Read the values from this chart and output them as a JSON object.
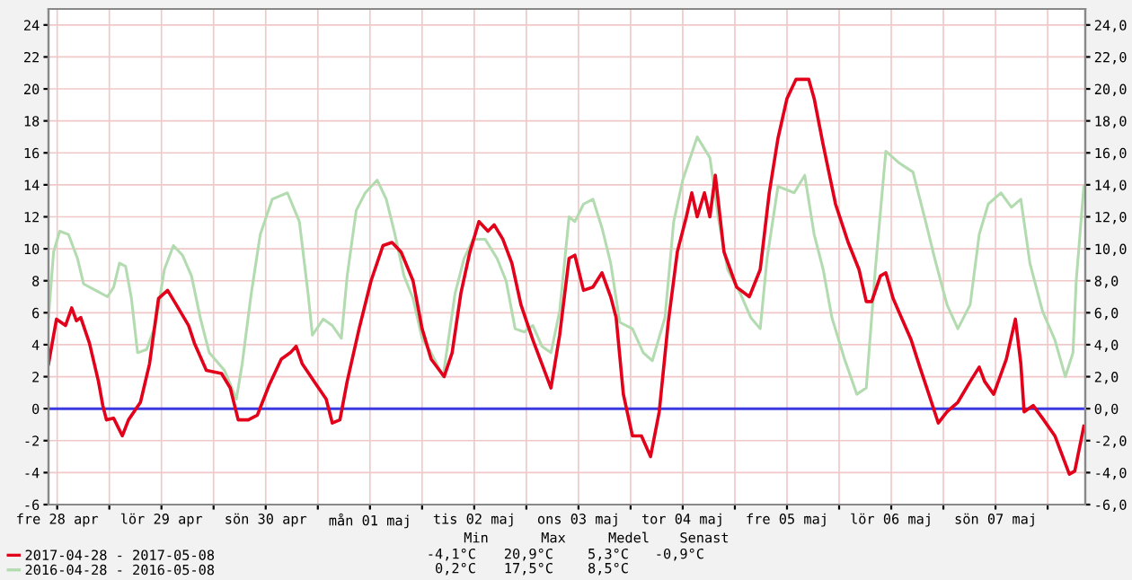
{
  "chart_data": {
    "type": "line",
    "xlim": [
      "2017-04-28T10:00",
      "2017-05-08T08:40"
    ],
    "xticks": [
      {
        "value": "2017-04-28T12:00",
        "label": "fre 28 apr"
      },
      {
        "value": "2017-04-29T00:00",
        "label": null
      },
      {
        "value": "2017-04-29T12:00",
        "label": "lör 29 apr"
      },
      {
        "value": "2017-04-30T00:00",
        "label": null
      },
      {
        "value": "2017-04-30T12:00",
        "label": "sön 30 apr"
      },
      {
        "value": "2017-05-01T00:00",
        "label": null
      },
      {
        "value": "2017-05-01T12:00",
        "label": "mån 01 maj"
      },
      {
        "value": "2017-05-02T00:00",
        "label": null
      },
      {
        "value": "2017-05-02T12:00",
        "label": "tis 02 maj"
      },
      {
        "value": "2017-05-03T00:00",
        "label": null
      },
      {
        "value": "2017-05-03T12:00",
        "label": "ons 03 maj"
      },
      {
        "value": "2017-05-04T00:00",
        "label": null
      },
      {
        "value": "2017-05-04T12:00",
        "label": "tor 04 maj"
      },
      {
        "value": "2017-05-05T00:00",
        "label": null
      },
      {
        "value": "2017-05-05T12:00",
        "label": "fre 05 maj"
      },
      {
        "value": "2017-05-06T00:00",
        "label": null
      },
      {
        "value": "2017-05-06T12:00",
        "label": "lör 06 maj"
      },
      {
        "value": "2017-05-07T00:00",
        "label": null
      },
      {
        "value": "2017-05-07T12:00",
        "label": "sön 07 maj"
      },
      {
        "value": "2017-05-08T00:00",
        "label": null
      }
    ],
    "ylim": [
      -6,
      25
    ],
    "yticks": [
      -6,
      -4,
      -2,
      0,
      2,
      4,
      6,
      8,
      10,
      12,
      14,
      16,
      18,
      20,
      22,
      24
    ],
    "y2lim": [
      -6,
      25
    ],
    "y2ticks": [
      {
        "value": -6,
        "label": "-6,0"
      },
      {
        "value": -4,
        "label": "-4,0"
      },
      {
        "value": -2,
        "label": "-2,0"
      },
      {
        "value": 0,
        "label": "0,0"
      },
      {
        "value": 2,
        "label": "2,0"
      },
      {
        "value": 4,
        "label": "4,0"
      },
      {
        "value": 6,
        "label": "6,0"
      },
      {
        "value": 8,
        "label": "8,0"
      },
      {
        "value": 10,
        "label": "10,0"
      },
      {
        "value": 12,
        "label": "12,0"
      },
      {
        "value": 14,
        "label": "14,0"
      },
      {
        "value": 16,
        "label": "16,0"
      },
      {
        "value": 18,
        "label": "18,0"
      },
      {
        "value": 20,
        "label": "20,0"
      },
      {
        "value": 22,
        "label": "22,0"
      },
      {
        "value": 24,
        "label": "24,0"
      }
    ],
    "grid": true,
    "legend": "bottom left",
    "ref_lines": [
      {
        "axis": "y",
        "value": 0,
        "color": "#3a3ae0"
      }
    ],
    "annotations": [
      "Min",
      "Max",
      "Medel",
      "Senast",
      "-4,1°C",
      "20,9°C",
      "5,3°C",
      "-0,9°C",
      "0,2°C",
      "17,5°C",
      "8,5°C"
    ],
    "series": [
      {
        "name": "2016-04-28 - 2016-05-08",
        "color": "#b3dbb0",
        "x": [
          "2017-04-28T10:00",
          "2017-04-28T11:10",
          "2017-04-28T12:35",
          "2017-04-28T14:35",
          "2017-04-28T16:40",
          "2017-04-28T18:05",
          "2017-04-28T20:50",
          "2017-04-28T23:35",
          "2017-04-29T01:00",
          "2017-04-29T02:20",
          "2017-04-29T03:45",
          "2017-04-29T05:05",
          "2017-04-29T06:30",
          "2017-04-29T08:35",
          "2017-04-29T10:35",
          "2017-04-29T12:40",
          "2017-04-29T14:45",
          "2017-04-29T16:50",
          "2017-04-29T18:55",
          "2017-04-29T20:55",
          "2017-04-29T23:00",
          "2017-04-30T02:30",
          "2017-04-30T05:15",
          "2017-04-30T06:35",
          "2017-04-30T08:40",
          "2017-04-30T10:45",
          "2017-04-30T13:30",
          "2017-04-30T17:00",
          "2017-04-30T19:45",
          "2017-04-30T21:45",
          "2017-04-30T22:45",
          "2017-05-01T01:15",
          "2017-05-01T03:20",
          "2017-05-01T05:25",
          "2017-05-01T06:45",
          "2017-05-01T08:50",
          "2017-05-01T10:55",
          "2017-05-01T13:40",
          "2017-05-01T15:45",
          "2017-05-01T17:45",
          "2017-05-01T19:50",
          "2017-05-01T21:55",
          "2017-05-02T00:00",
          "2017-05-02T02:05",
          "2017-05-02T04:50",
          "2017-05-02T07:35",
          "2017-05-02T09:40",
          "2017-05-02T11:45",
          "2017-05-02T14:30",
          "2017-05-02T17:15",
          "2017-05-02T19:20",
          "2017-05-02T21:25",
          "2017-05-02T23:30",
          "2017-05-03T01:30",
          "2017-05-03T03:35",
          "2017-05-03T05:40",
          "2017-05-03T07:40",
          "2017-05-03T09:50",
          "2017-05-03T11:10",
          "2017-05-03T13:10",
          "2017-05-03T15:20",
          "2017-05-03T17:25",
          "2017-05-03T19:25",
          "2017-05-03T21:30",
          "2017-05-04T00:25",
          "2017-05-04T02:55",
          "2017-05-04T05:00",
          "2017-05-04T07:55",
          "2017-05-04T09:55",
          "2017-05-04T12:00",
          "2017-05-04T15:20",
          "2017-05-04T18:15",
          "2017-05-04T20:20",
          "2017-05-04T22:20",
          "2017-05-05T01:15",
          "2017-05-05T03:40",
          "2017-05-05T05:50",
          "2017-05-05T07:25",
          "2017-05-05T09:55",
          "2017-05-05T13:40",
          "2017-05-05T16:05",
          "2017-05-05T18:15",
          "2017-05-05T20:20",
          "2017-05-05T22:20",
          "2017-05-06T01:15",
          "2017-05-06T04:05",
          "2017-05-06T06:15",
          "2017-05-06T08:20",
          "2017-05-06T10:45",
          "2017-05-06T13:40",
          "2017-05-06T17:00",
          "2017-05-06T19:55",
          "2017-05-06T22:00",
          "2017-05-07T00:50",
          "2017-05-07T03:20",
          "2017-05-07T06:10",
          "2017-05-07T08:15",
          "2017-05-07T10:20",
          "2017-05-07T13:15",
          "2017-05-07T15:40",
          "2017-05-07T17:50",
          "2017-05-07T19:55",
          "2017-05-07T22:50",
          "2017-05-08T01:40",
          "2017-05-08T04:05",
          "2017-05-08T05:50",
          "2017-05-08T06:35",
          "2017-05-08T08:20"
        ],
        "values": [
          5.7,
          9.8,
          11.1,
          10.9,
          9.4,
          7.8,
          7.4,
          7.0,
          7.6,
          9.1,
          8.9,
          6.9,
          3.5,
          3.7,
          5.2,
          8.7,
          10.2,
          9.6,
          8.3,
          5.7,
          3.5,
          2.4,
          0.6,
          2.8,
          7.2,
          10.9,
          13.1,
          13.5,
          11.7,
          7.2,
          4.6,
          5.6,
          5.2,
          4.4,
          8.3,
          12.4,
          13.5,
          14.3,
          13.1,
          10.9,
          8.3,
          6.9,
          4.4,
          3.5,
          2.0,
          7.2,
          9.4,
          10.6,
          10.6,
          9.4,
          8.0,
          5.0,
          4.8,
          5.2,
          3.9,
          3.5,
          6.1,
          12.0,
          11.7,
          12.8,
          13.1,
          11.3,
          9.1,
          5.4,
          5.0,
          3.5,
          3.0,
          5.7,
          11.7,
          14.3,
          17.0,
          15.7,
          11.7,
          8.7,
          7.2,
          5.7,
          5.0,
          9.4,
          13.9,
          13.5,
          14.6,
          10.9,
          8.7,
          5.7,
          3.1,
          0.9,
          1.3,
          8.7,
          16.1,
          15.4,
          14.8,
          11.7,
          9.4,
          6.5,
          5.0,
          6.5,
          10.9,
          12.8,
          13.5,
          12.6,
          13.1,
          9.1,
          6.1,
          4.3,
          2.0,
          3.5,
          8.0,
          13.9
        ]
      },
      {
        "name": "2017-04-28 - 2017-05-08",
        "color": "#e3001b",
        "x": [
          "2017-04-28T10:00",
          "2017-04-28T11:50",
          "2017-04-28T13:55",
          "2017-04-28T15:20",
          "2017-04-28T16:25",
          "2017-04-28T17:25",
          "2017-04-28T19:25",
          "2017-04-28T21:30",
          "2017-04-28T22:30",
          "2017-04-28T23:20",
          "2017-04-29T01:00",
          "2017-04-29T03:00",
          "2017-04-29T04:25",
          "2017-04-29T07:10",
          "2017-04-29T09:15",
          "2017-04-29T11:20",
          "2017-04-29T13:25",
          "2017-04-29T15:25",
          "2017-04-29T18:15",
          "2017-04-29T19:35",
          "2017-04-29T22:20",
          "2017-04-30T01:50",
          "2017-04-30T03:50",
          "2017-04-30T05:40",
          "2017-04-30T08:00",
          "2017-04-30T10:05",
          "2017-04-30T12:50",
          "2017-04-30T15:35",
          "2017-04-30T17:40",
          "2017-04-30T19:00",
          "2017-04-30T20:25",
          "2017-04-30T23:10",
          "2017-05-01T01:55",
          "2017-05-01T03:20",
          "2017-05-01T05:05",
          "2017-05-01T06:45",
          "2017-05-01T09:30",
          "2017-05-01T12:15",
          "2017-05-01T15:00",
          "2017-05-01T17:05",
          "2017-05-01T19:10",
          "2017-05-01T21:55",
          "2017-05-02T00:00",
          "2017-05-02T02:05",
          "2017-05-02T05:05",
          "2017-05-02T06:55",
          "2017-05-02T08:55",
          "2017-05-02T11:00",
          "2017-05-02T13:05",
          "2017-05-02T15:10",
          "2017-05-02T16:35",
          "2017-05-02T18:35",
          "2017-05-02T20:40",
          "2017-05-02T22:45",
          "2017-05-03T01:30",
          "2017-05-03T03:35",
          "2017-05-03T05:40",
          "2017-05-03T07:40",
          "2017-05-03T09:50",
          "2017-05-03T11:10",
          "2017-05-03T13:10",
          "2017-05-03T15:20",
          "2017-05-03T17:25",
          "2017-05-03T19:25",
          "2017-05-03T20:40",
          "2017-05-03T22:20",
          "2017-05-04T00:25",
          "2017-05-04T02:30",
          "2017-05-04T04:35",
          "2017-05-04T06:35",
          "2017-05-04T08:40",
          "2017-05-04T10:45",
          "2017-05-04T12:50",
          "2017-05-04T14:05",
          "2017-05-04T15:20",
          "2017-05-04T17:00",
          "2017-05-04T18:15",
          "2017-05-04T19:30",
          "2017-05-04T21:30",
          "2017-05-05T00:25",
          "2017-05-05T03:20",
          "2017-05-05T05:50",
          "2017-05-05T07:55",
          "2017-05-05T09:55",
          "2017-05-05T12:00",
          "2017-05-05T14:05",
          "2017-05-05T17:00",
          "2017-05-05T18:15",
          "2017-05-05T20:20",
          "2017-05-05T23:10",
          "2017-05-06T02:05",
          "2017-05-06T04:35",
          "2017-05-06T06:15",
          "2017-05-06T07:30",
          "2017-05-06T09:30",
          "2017-05-06T10:45",
          "2017-05-06T12:25",
          "2017-05-06T14:30",
          "2017-05-06T16:35",
          "2017-05-06T18:35",
          "2017-05-06T20:40",
          "2017-05-06T22:50",
          "2017-05-07T00:50",
          "2017-05-07T03:20",
          "2017-05-07T06:10",
          "2017-05-07T08:15",
          "2017-05-07T09:30",
          "2017-05-07T11:35",
          "2017-05-07T14:30",
          "2017-05-07T16:35",
          "2017-05-07T17:50",
          "2017-05-07T18:35",
          "2017-05-07T20:40",
          "2017-05-07T22:50",
          "2017-05-08T01:40",
          "2017-05-08T05:00",
          "2017-05-08T06:15",
          "2017-05-08T08:20"
        ],
        "values": [
          2.8,
          5.6,
          5.2,
          6.3,
          5.5,
          5.7,
          4.1,
          1.7,
          0.2,
          -0.7,
          -0.6,
          -1.7,
          -0.7,
          0.4,
          2.8,
          6.9,
          7.4,
          6.5,
          5.2,
          4.1,
          2.4,
          2.2,
          1.3,
          -0.7,
          -0.7,
          -0.4,
          1.5,
          3.1,
          3.5,
          3.9,
          2.8,
          1.7,
          0.6,
          -0.9,
          -0.7,
          1.7,
          5.0,
          8.0,
          10.2,
          10.4,
          9.8,
          8.0,
          5.0,
          3.1,
          2.0,
          3.5,
          7.2,
          9.8,
          11.7,
          11.1,
          11.5,
          10.6,
          9.1,
          6.5,
          4.3,
          2.8,
          1.3,
          4.6,
          9.4,
          9.6,
          7.4,
          7.6,
          8.5,
          7.0,
          5.7,
          0.9,
          -1.7,
          -1.7,
          -3.0,
          -0.2,
          5.4,
          9.8,
          12.0,
          13.5,
          12.0,
          13.5,
          12.0,
          14.6,
          9.8,
          7.6,
          7.0,
          8.7,
          13.5,
          16.9,
          19.4,
          20.6,
          20.6,
          19.4,
          16.5,
          12.8,
          10.4,
          8.7,
          6.7,
          6.7,
          8.3,
          8.5,
          6.9,
          5.6,
          4.3,
          2.6,
          0.9,
          -0.9,
          -0.2,
          0.4,
          1.7,
          2.6,
          1.7,
          0.9,
          3.1,
          5.6,
          2.8,
          -0.2,
          0.2,
          -0.6,
          -1.7,
          -4.1,
          -3.9,
          -1.1
        ]
      }
    ]
  }
}
